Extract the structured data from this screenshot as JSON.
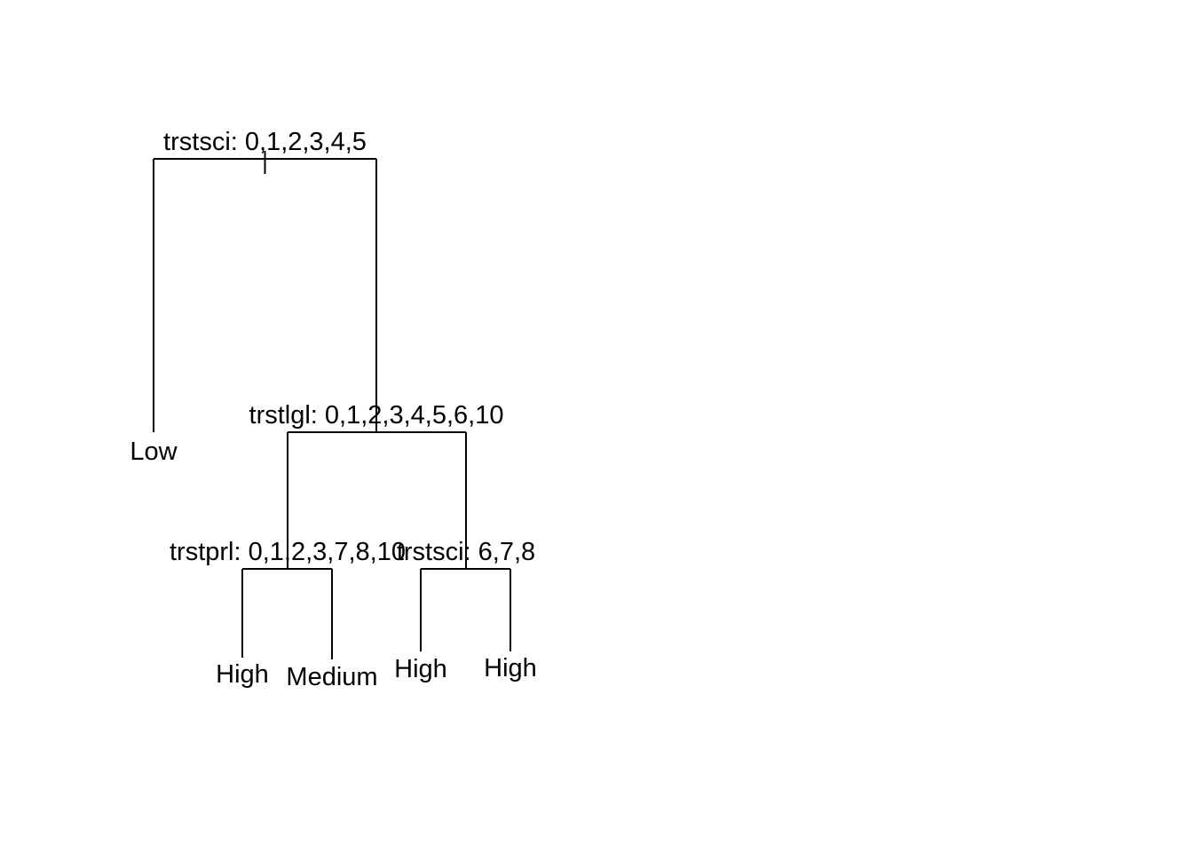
{
  "tree": {
    "root": {
      "split": "trstsci: 0,1,2,3,4,5",
      "left": {
        "leaf": "Low"
      },
      "right": {
        "split": "trstlgl: 0,1,2,3,4,5,6,10",
        "left": {
          "split": "trstprl: 0,1,2,3,7,8,10",
          "left": {
            "leaf": "High"
          },
          "right": {
            "leaf": "Medium"
          }
        },
        "right": {
          "split": "trstsci: 6,7,8",
          "left": {
            "leaf": "High"
          },
          "right": {
            "leaf": "High"
          }
        }
      }
    }
  }
}
